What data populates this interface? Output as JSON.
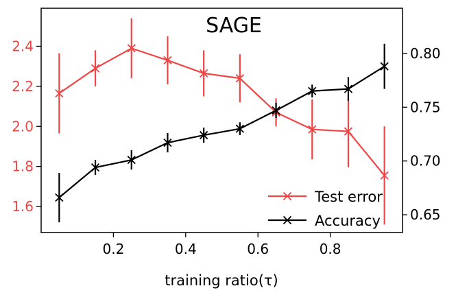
{
  "chart_data": {
    "type": "line",
    "title": "SAGE",
    "xlabel": "training ratio(τ)",
    "xlim": [
      0.0,
      1.0
    ],
    "x_ticks": [
      0.2,
      0.4,
      0.6,
      0.8
    ],
    "x_tick_labels": [
      "0.2",
      "0.4",
      "0.6",
      "0.8"
    ],
    "x": [
      0.05,
      0.15,
      0.25,
      0.35,
      0.45,
      0.55,
      0.65,
      0.75,
      0.85,
      0.95
    ],
    "y_left": {
      "label": "",
      "lim": [
        1.47,
        2.59
      ],
      "ticks": [
        1.6,
        1.8,
        2.0,
        2.2,
        2.4
      ],
      "tick_labels": [
        "1.6",
        "1.8",
        "2.0",
        "2.2",
        "2.4"
      ],
      "color": "#f04545"
    },
    "y_right": {
      "label": "",
      "lim": [
        0.6335,
        0.842
      ],
      "ticks": [
        0.65,
        0.7,
        0.75,
        0.8
      ],
      "tick_labels": [
        "0.65",
        "0.70",
        "0.75",
        "0.80"
      ],
      "color": "#000000"
    },
    "series": [
      {
        "name": "Test error",
        "axis": "left",
        "color": "#f04545",
        "marker": "x",
        "values": [
          2.165,
          2.29,
          2.39,
          2.33,
          2.265,
          2.24,
          2.07,
          1.985,
          1.975,
          1.755
        ],
        "errors": [
          0.2,
          0.09,
          0.15,
          0.12,
          0.115,
          0.12,
          0.07,
          0.15,
          0.18,
          0.245
        ]
      },
      {
        "name": "Accuracy",
        "axis": "right",
        "color": "#000000",
        "marker": "x",
        "values": [
          0.666,
          0.694,
          0.701,
          0.717,
          0.724,
          0.73,
          0.747,
          0.765,
          0.767,
          0.788
        ],
        "errors": [
          0.023,
          0.007,
          0.009,
          0.009,
          0.007,
          0.006,
          0.007,
          0.006,
          0.011,
          0.021
        ]
      }
    ],
    "legend": {
      "position": "bottom-right",
      "entries": [
        "Test error",
        "Accuracy"
      ]
    }
  }
}
